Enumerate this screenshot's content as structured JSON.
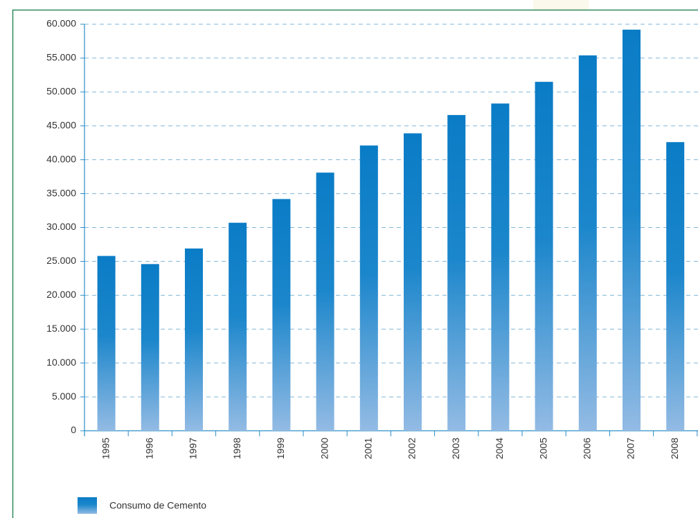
{
  "chart_data": {
    "type": "bar",
    "categories": [
      "1995",
      "1996",
      "1997",
      "1998",
      "1999",
      "2000",
      "2001",
      "2002",
      "2003",
      "2004",
      "2005",
      "2006",
      "2007",
      "2008"
    ],
    "series": [
      {
        "name": "Consumo de Cemento",
        "color": "#0a7cc6",
        "values": [
          25800,
          24600,
          26900,
          30700,
          34200,
          38100,
          42100,
          43900,
          46600,
          48300,
          51500,
          55400,
          59200,
          42600
        ]
      }
    ],
    "ylim": [
      0,
      60000
    ],
    "yticks": [
      0,
      {
        "value": 5000,
        "label": "5.000"
      },
      {
        "value": 10000,
        "label": "10.000"
      },
      {
        "value": 15000,
        "label": "15.000"
      },
      {
        "value": 20000,
        "label": "20.000"
      },
      {
        "value": 25000,
        "label": "25.000"
      },
      {
        "value": 30000,
        "label": "30.000"
      },
      {
        "value": 35000,
        "label": "35.000"
      },
      {
        "value": 40000,
        "label": "40.000"
      },
      {
        "value": 45000,
        "label": "45.000"
      },
      {
        "value": 50000,
        "label": "50.000"
      },
      {
        "value": 55000,
        "label": "55.000"
      },
      {
        "value": 60000,
        "label": "60.000"
      }
    ],
    "grid": true
  }
}
